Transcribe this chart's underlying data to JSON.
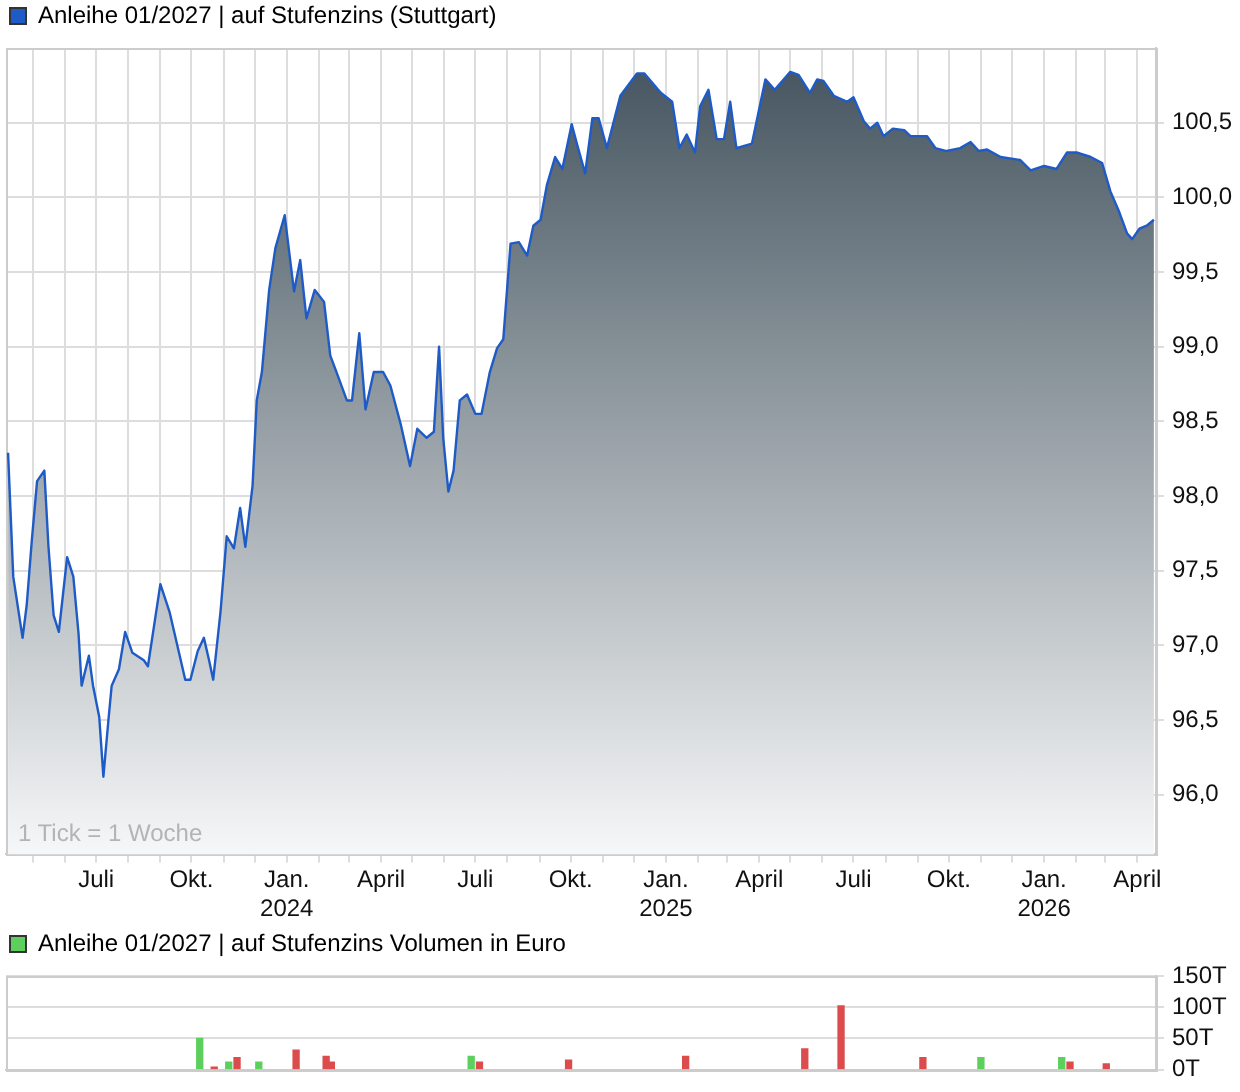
{
  "chart_data": [
    {
      "type": "area",
      "legend": "top left",
      "grid": true,
      "xlim": [
        "2023-04-05",
        "2026-04-19"
      ],
      "xticks": [
        {
          "value": "2023-05-01",
          "label": null
        },
        {
          "value": "2023-06-01",
          "label": null
        },
        {
          "value": "2023-07-01",
          "label": "Juli"
        },
        {
          "value": "2023-08-01",
          "label": null
        },
        {
          "value": "2023-09-01",
          "label": null
        },
        {
          "value": "2023-10-01",
          "label": "Okt."
        },
        {
          "value": "2023-11-01",
          "label": null
        },
        {
          "value": "2023-12-01",
          "label": null
        },
        {
          "value": "2024-01-01",
          "label": "Jan. 2024"
        },
        {
          "value": "2024-02-01",
          "label": null
        },
        {
          "value": "2024-03-01",
          "label": null
        },
        {
          "value": "2024-04-01",
          "label": "April"
        },
        {
          "value": "2024-05-01",
          "label": null
        },
        {
          "value": "2024-06-01",
          "label": null
        },
        {
          "value": "2024-07-01",
          "label": "Juli"
        },
        {
          "value": "2024-08-01",
          "label": null
        },
        {
          "value": "2024-09-01",
          "label": null
        },
        {
          "value": "2024-10-01",
          "label": "Okt."
        },
        {
          "value": "2024-11-01",
          "label": null
        },
        {
          "value": "2024-12-01",
          "label": null
        },
        {
          "value": "2025-01-01",
          "label": "Jan. 2025"
        },
        {
          "value": "2025-02-01",
          "label": null
        },
        {
          "value": "2025-03-01",
          "label": null
        },
        {
          "value": "2025-04-01",
          "label": "April"
        },
        {
          "value": "2025-05-01",
          "label": null
        },
        {
          "value": "2025-06-01",
          "label": null
        },
        {
          "value": "2025-07-01",
          "label": "Juli"
        },
        {
          "value": "2025-08-01",
          "label": null
        },
        {
          "value": "2025-09-01",
          "label": null
        },
        {
          "value": "2025-10-01",
          "label": "Okt."
        },
        {
          "value": "2025-11-01",
          "label": null
        },
        {
          "value": "2025-12-01",
          "label": null
        },
        {
          "value": "2026-01-01",
          "label": "Jan. 2026"
        },
        {
          "value": "2026-02-01",
          "label": null
        },
        {
          "value": "2026-03-01",
          "label": null
        },
        {
          "value": "2026-04-01",
          "label": "April"
        }
      ],
      "ylim": [
        95.6,
        101.0
      ],
      "yticks": [
        {
          "value": 96,
          "label": "96,0"
        },
        {
          "value": 96.5,
          "label": "96,5"
        },
        {
          "value": 97,
          "label": "97,0"
        },
        {
          "value": 97.5,
          "label": "97,5"
        },
        {
          "value": 98,
          "label": "98,0"
        },
        {
          "value": 98.5,
          "label": "98,5"
        },
        {
          "value": 99,
          "label": "99,0"
        },
        {
          "value": 99.5,
          "label": "99,5"
        },
        {
          "value": 100,
          "label": "100,0"
        },
        {
          "value": 100.5,
          "label": "100,5"
        }
      ],
      "annotations": [
        "1 Tick = 1 Woche"
      ],
      "x": [
        "2023-04-07",
        "2023-04-12",
        "2023-04-21",
        "2023-04-25",
        "2023-04-30",
        "2023-05-05",
        "2023-05-12",
        "2023-05-16",
        "2023-05-21",
        "2023-05-26",
        "2023-06-03",
        "2023-06-09",
        "2023-06-14",
        "2023-06-17",
        "2023-06-24",
        "2023-06-28",
        "2023-07-04",
        "2023-07-08",
        "2023-07-13",
        "2023-07-16",
        "2023-07-23",
        "2023-07-29",
        "2023-08-05",
        "2023-08-16",
        "2023-08-20",
        "2023-09-01",
        "2023-09-10",
        "2023-09-19",
        "2023-09-25",
        "2023-09-30",
        "2023-10-07",
        "2023-10-13",
        "2023-10-18",
        "2023-10-22",
        "2023-10-29",
        "2023-11-04",
        "2023-11-11",
        "2023-11-17",
        "2023-11-22",
        "2023-11-29",
        "2023-12-03",
        "2023-12-08",
        "2023-12-15",
        "2023-12-21",
        "2023-12-30",
        "2024-01-08",
        "2024-01-14",
        "2024-01-20",
        "2024-01-28",
        "2024-02-06",
        "2024-02-12",
        "2024-02-18",
        "2024-02-28",
        "2024-03-04",
        "2024-03-11",
        "2024-03-17",
        "2024-03-25",
        "2024-04-03",
        "2024-04-10",
        "2024-04-20",
        "2024-04-29",
        "2024-05-06",
        "2024-05-15",
        "2024-05-22",
        "2024-05-27",
        "2024-05-31",
        "2024-06-05",
        "2024-06-10",
        "2024-06-16",
        "2024-06-23",
        "2024-07-01",
        "2024-07-07",
        "2024-07-15",
        "2024-07-22",
        "2024-07-28",
        "2024-08-04",
        "2024-08-12",
        "2024-08-20",
        "2024-08-26",
        "2024-09-02",
        "2024-09-08",
        "2024-09-16",
        "2024-09-23",
        "2024-10-02",
        "2024-10-07",
        "2024-10-15",
        "2024-10-22",
        "2024-10-28",
        "2024-11-05",
        "2024-11-18",
        "2024-12-04",
        "2024-12-11",
        "2024-12-27",
        "2025-01-07",
        "2025-01-14",
        "2025-01-21",
        "2025-01-29",
        "2025-02-03",
        "2025-02-11",
        "2025-02-19",
        "2025-02-26",
        "2025-03-04",
        "2025-03-10",
        "2025-03-25",
        "2025-04-07",
        "2025-04-16",
        "2025-05-01",
        "2025-05-09",
        "2025-05-20",
        "2025-05-27",
        "2025-06-02",
        "2025-06-12",
        "2025-06-25",
        "2025-07-01",
        "2025-07-11",
        "2025-07-17",
        "2025-07-24",
        "2025-07-30",
        "2025-08-08",
        "2025-08-19",
        "2025-08-25",
        "2025-09-10",
        "2025-09-18",
        "2025-09-29",
        "2025-10-12",
        "2025-10-22",
        "2025-10-30",
        "2025-11-07",
        "2025-11-20",
        "2025-12-09",
        "2025-12-19",
        "2026-01-01",
        "2026-01-13",
        "2026-01-23",
        "2026-02-02",
        "2026-02-15",
        "2026-02-26",
        "2026-03-06",
        "2026-03-14",
        "2026-03-22",
        "2026-03-27",
        "2026-04-03",
        "2026-04-10",
        "2026-04-17"
      ],
      "series": [
        {
          "name": "Anleihe 01/2027 | auf Stufenzins (Stuttgart)",
          "color": "#1f5bc6",
          "values": [
            98.29,
            97.46,
            97.05,
            97.27,
            97.71,
            98.1,
            98.17,
            97.66,
            97.2,
            97.09,
            97.59,
            97.46,
            97.08,
            96.73,
            96.93,
            96.73,
            96.52,
            96.12,
            96.51,
            96.73,
            96.84,
            97.09,
            96.95,
            96.9,
            96.86,
            97.41,
            97.22,
            96.95,
            96.77,
            96.77,
            96.96,
            97.05,
            96.9,
            96.77,
            97.22,
            97.73,
            97.65,
            97.92,
            97.66,
            98.07,
            98.64,
            98.83,
            99.38,
            99.66,
            99.88,
            99.37,
            99.58,
            99.19,
            99.38,
            99.3,
            98.94,
            98.83,
            98.64,
            98.64,
            99.09,
            98.58,
            98.83,
            98.83,
            98.74,
            98.48,
            98.2,
            98.45,
            98.39,
            98.43,
            99.0,
            98.39,
            98.03,
            98.17,
            98.64,
            98.68,
            98.55,
            98.55,
            98.83,
            98.99,
            99.05,
            99.69,
            99.7,
            99.61,
            99.81,
            99.85,
            100.08,
            100.27,
            100.19,
            100.49,
            100.36,
            100.16,
            100.53,
            100.53,
            100.33,
            100.68,
            100.83,
            100.83,
            100.7,
            100.64,
            100.33,
            100.42,
            100.3,
            100.61,
            100.72,
            100.39,
            100.39,
            100.64,
            100.33,
            100.36,
            100.79,
            100.72,
            100.84,
            100.82,
            100.7,
            100.79,
            100.78,
            100.68,
            100.64,
            100.67,
            100.51,
            100.46,
            100.5,
            100.41,
            100.46,
            100.45,
            100.41,
            100.41,
            100.33,
            100.31,
            100.33,
            100.37,
            100.31,
            100.32,
            100.27,
            100.25,
            100.18,
            100.21,
            100.19,
            100.3,
            100.3,
            100.27,
            100.23,
            100.04,
            99.91,
            99.76,
            99.72,
            99.79,
            99.81,
            99.85
          ]
        }
      ]
    },
    {
      "type": "bar",
      "legend": "top left",
      "grid": "y",
      "tick_labels": "y",
      "xlim": [
        "2023-04-05",
        "2026-04-19"
      ],
      "ylim": [
        0,
        150
      ],
      "yticks": [
        {
          "value": 0,
          "label": "0T"
        },
        {
          "value": 50,
          "label": "50T"
        },
        {
          "value": 100,
          "label": "100T"
        },
        {
          "value": 150,
          "label": "150T"
        }
      ],
      "x": [
        "2023-10-09",
        "2023-10-23",
        "2023-11-06",
        "2023-11-14",
        "2023-12-05",
        "2024-01-10",
        "2024-02-08",
        "2024-02-13",
        "2024-06-27",
        "2024-07-05",
        "2024-09-29",
        "2025-01-20",
        "2025-05-15",
        "2025-06-19",
        "2025-09-06",
        "2025-11-01",
        "2026-01-18",
        "2026-01-26",
        "2026-03-02"
      ],
      "series": [
        {
          "name": "Anleihe 01/2027 | auf Stufenzins Volumen in Euro",
          "color": "#5ccf5c",
          "colors": [
            "#5ccf5c",
            "#dd4c4c",
            "#5ccf5c",
            "#dd4c4c",
            "#5ccf5c",
            "#dd4c4c",
            "#dd4c4c",
            "#dd4c4c",
            "#5ccf5c",
            "#dd4c4c",
            "#dd4c4c",
            "#dd4c4c",
            "#dd4c4c",
            "#dd4c4c",
            "#dd4c4c",
            "#5ccf5c",
            "#5ccf5c",
            "#dd4c4c",
            "#dd4c4c"
          ],
          "values": [
            50,
            4,
            12,
            19,
            12,
            31,
            21,
            12,
            21,
            12,
            15,
            21,
            33,
            102,
            19,
            19,
            19,
            12,
            9
          ]
        }
      ]
    }
  ]
}
